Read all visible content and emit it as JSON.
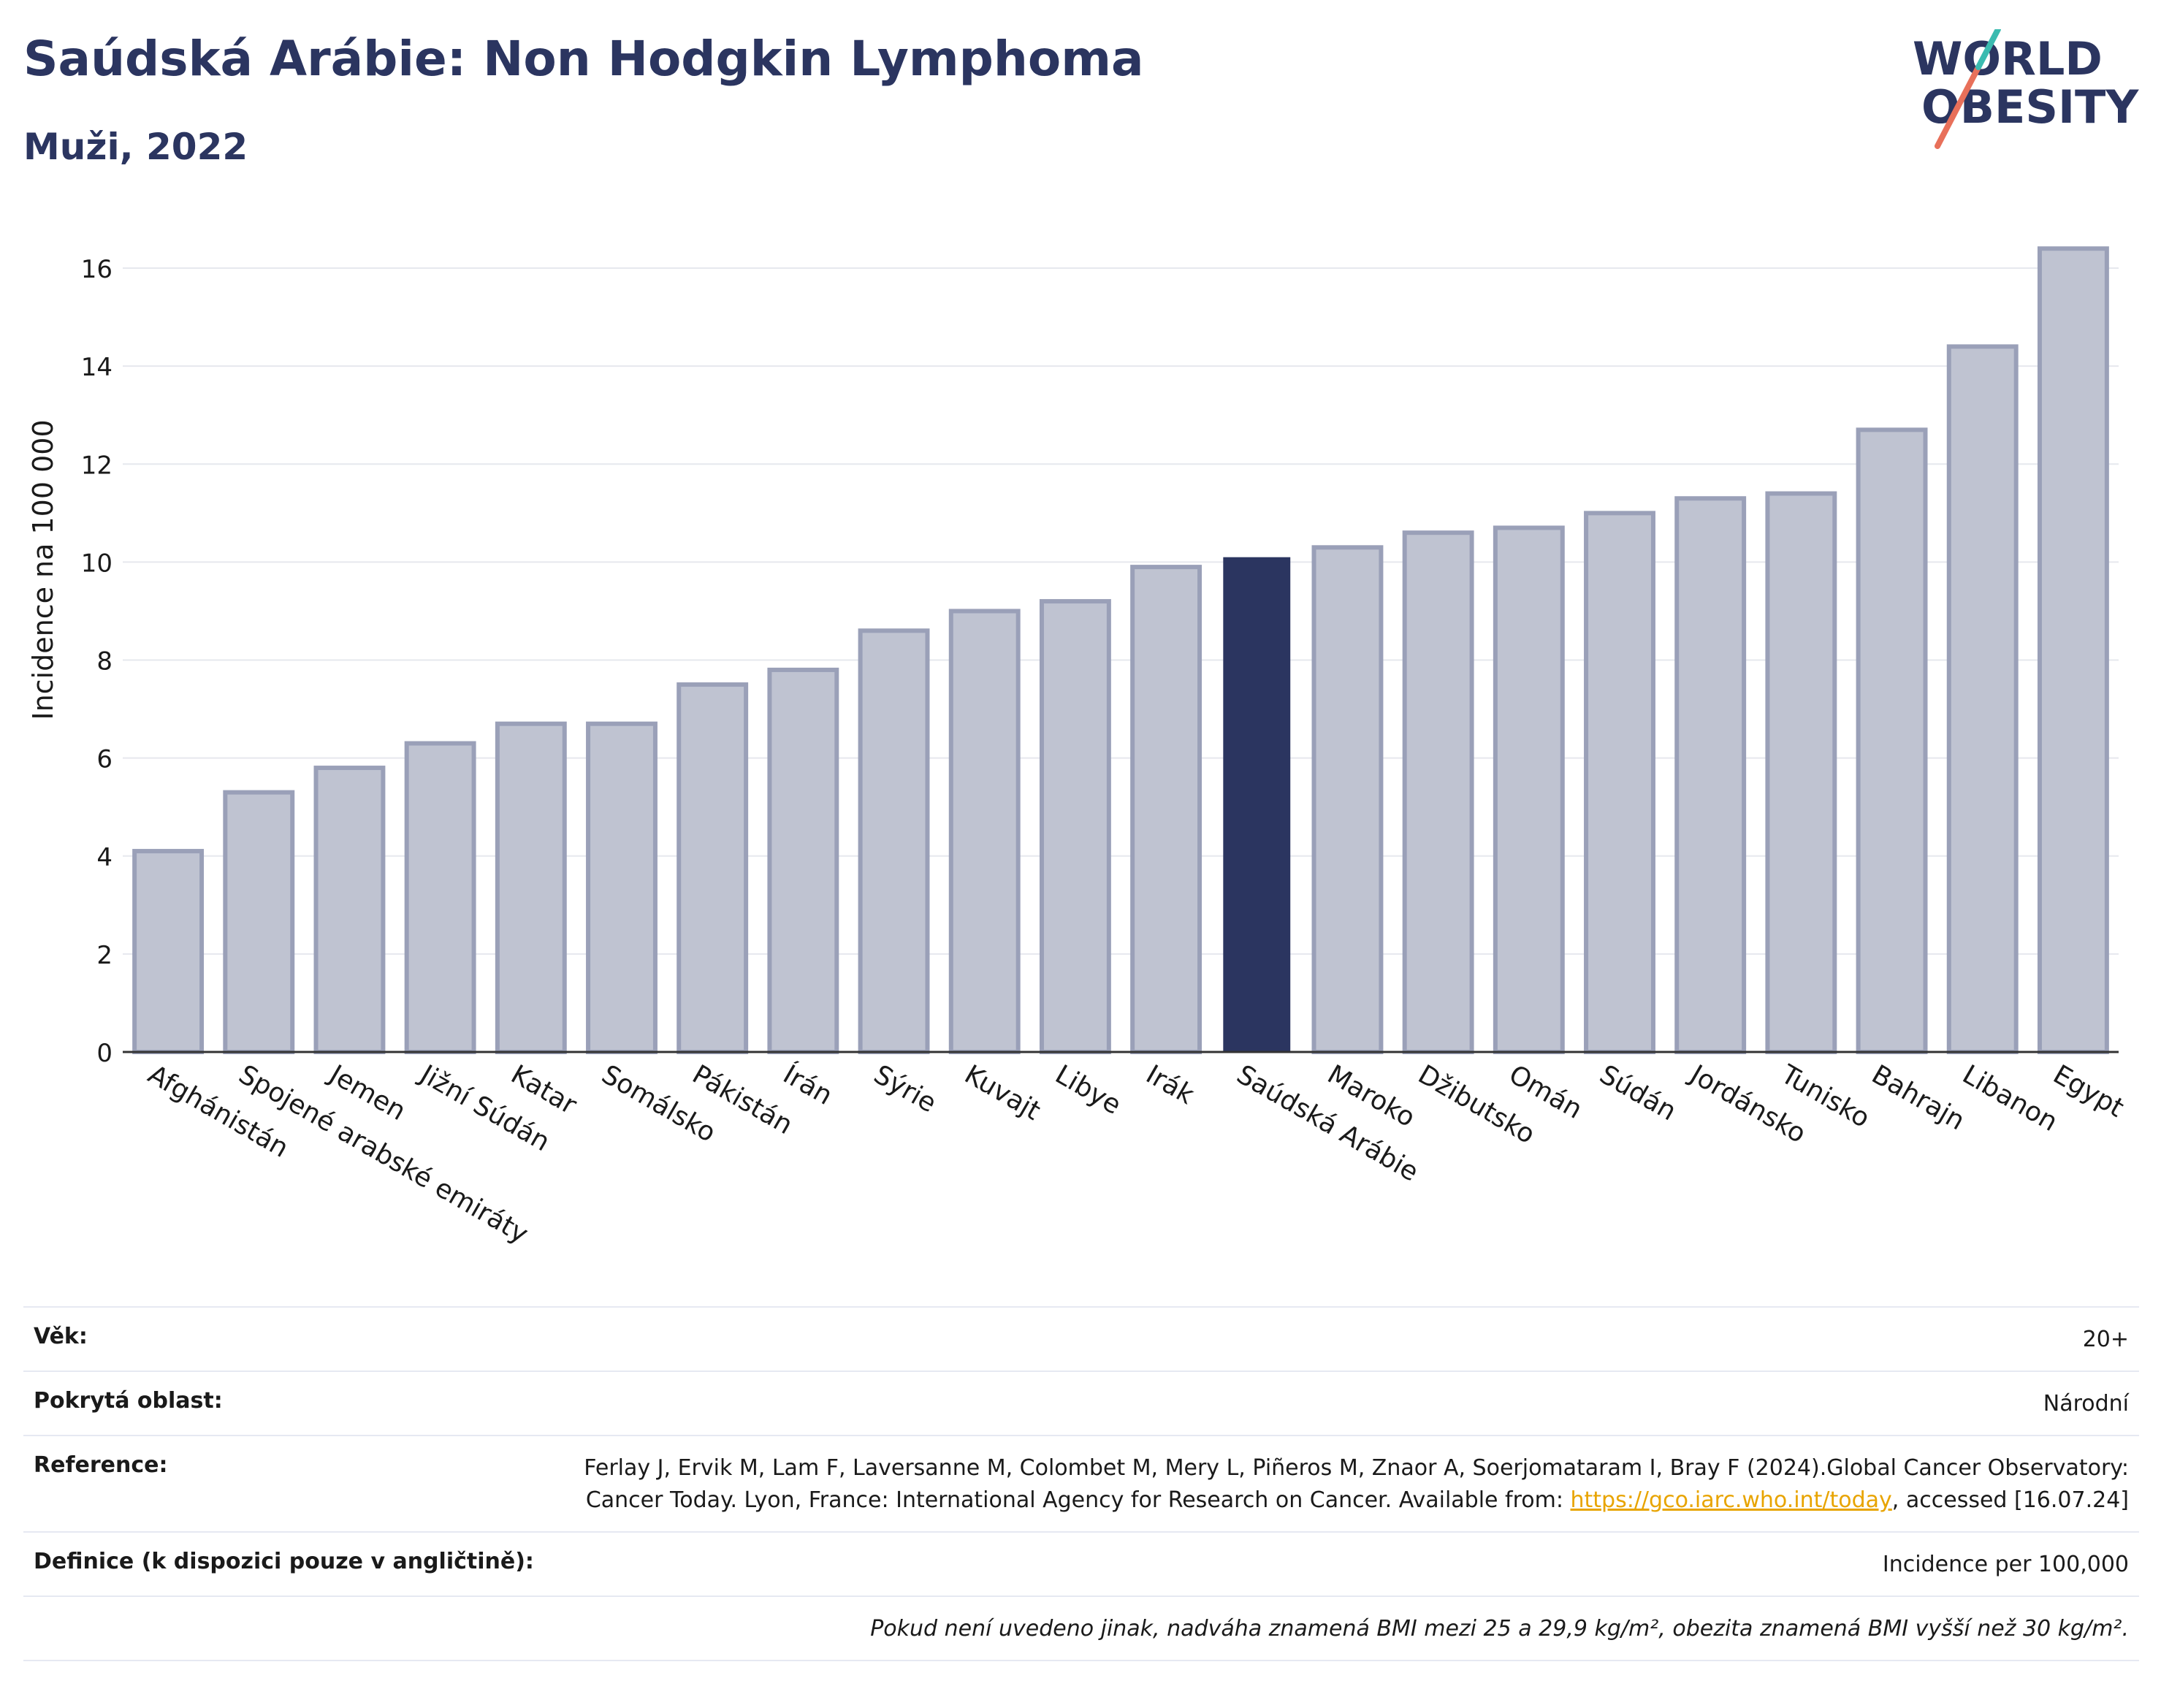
{
  "header": {
    "title": "Saúdská Arábie: Non Hodgkin Lymphoma",
    "subtitle": "Muži, 2022"
  },
  "logo": {
    "line1": "WORLD",
    "line2": "OBESITY"
  },
  "colors": {
    "bar": "#bfc3d1",
    "bar_border": "#9aa0b8",
    "highlight": "#2b3560",
    "grid": "#e6e8ee",
    "axis": "#333333"
  },
  "chart_data": {
    "type": "bar",
    "ylabel": "Incidence na 100 000",
    "xlabel": "",
    "ylim": [
      0,
      17
    ],
    "yticks": [
      0,
      2,
      4,
      6,
      8,
      10,
      12,
      14,
      16
    ],
    "grid": true,
    "highlight": "Saúdská Arábie",
    "categories": [
      "Afghánistán",
      "Spojené arabské emiráty",
      "Jemen",
      "Jižní Súdán",
      "Katar",
      "Somálsko",
      "Pákistán",
      "Írán",
      "Sýrie",
      "Kuvajt",
      "Libye",
      "Irák",
      "Saúdská Arábie",
      "Maroko",
      "Džibutsko",
      "Omán",
      "Súdán",
      "Jordánsko",
      "Tunisko",
      "Bahrajn",
      "Libanon",
      "Egypt"
    ],
    "values": [
      4.1,
      5.3,
      5.8,
      6.3,
      6.7,
      6.7,
      7.5,
      7.8,
      8.6,
      9.0,
      9.2,
      9.9,
      10.1,
      10.3,
      10.6,
      10.7,
      11.0,
      11.3,
      11.4,
      12.7,
      14.4,
      16.4
    ]
  },
  "info": {
    "age_label": "Věk:",
    "age_value": "20+",
    "area_label": "Pokrytá oblast:",
    "area_value": "Národní",
    "ref_label": "Reference:",
    "ref_text_1": "Ferlay J, Ervik M, Lam F, Laversanne M, Colombet M, Mery L, Piñeros M, Znaor A, Soerjomataram I, Bray F (2024).Global Cancer Observatory: Cancer Today. Lyon, France: International Agency for Research on Cancer. Available from: ",
    "ref_link": "https://gco.iarc.who.int/today",
    "ref_text_2": ", accessed [16.07.24]",
    "def_label": "Definice (k dispozici pouze v angličtině):",
    "def_value": "Incidence per 100,000",
    "note": "Pokud není uvedeno jinak, nadváha znamená BMI mezi 25 a 29,9 kg/m², obezita znamená BMI vyšší než 30 kg/m²."
  }
}
